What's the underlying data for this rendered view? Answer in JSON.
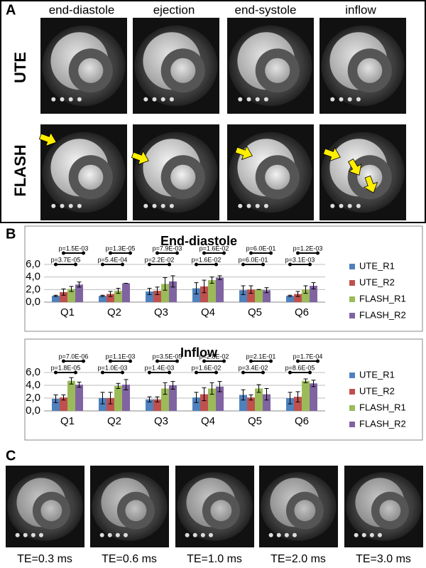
{
  "panels": {
    "a": {
      "label": "A",
      "columns": [
        "end-diastole",
        "ejection",
        "end-systole",
        "inflow"
      ],
      "rows": [
        "UTE",
        "FLASH"
      ]
    },
    "b": {
      "label": "B"
    },
    "c": {
      "label": "C",
      "images": [
        "TE=0.3 ms",
        "TE=0.6 ms",
        "TE=1.0 ms",
        "TE=2.0 ms",
        "TE=3.0 ms"
      ]
    }
  },
  "chart_data": [
    {
      "type": "bar",
      "title": "End-diastole",
      "categories": [
        "Q1",
        "Q2",
        "Q3",
        "Q4",
        "Q5",
        "Q6"
      ],
      "series": [
        {
          "name": "UTE_R1",
          "color": "#4f81bd",
          "values": [
            1.0,
            1.0,
            1.7,
            2.2,
            1.9,
            1.0
          ],
          "errors": [
            0.1,
            0.1,
            0.5,
            0.9,
            0.7,
            0.1
          ]
        },
        {
          "name": "UTE_R2",
          "color": "#c0504d",
          "values": [
            1.6,
            1.3,
            1.8,
            2.5,
            2.0,
            1.3
          ],
          "errors": [
            0.5,
            0.4,
            0.6,
            1.0,
            0.6,
            0.4
          ]
        },
        {
          "name": "FLASH_R1",
          "color": "#9bbb59",
          "values": [
            2.1,
            1.8,
            2.9,
            3.5,
            2.0,
            2.0
          ],
          "errors": [
            0.4,
            0.4,
            1.0,
            0.5,
            0.0,
            0.6
          ]
        },
        {
          "name": "FLASH_R2",
          "color": "#8064a2",
          "values": [
            2.8,
            3.0,
            3.3,
            3.9,
            1.9,
            2.6
          ],
          "errors": [
            0.4,
            0.0,
            0.9,
            0.3,
            0.4,
            0.5
          ]
        }
      ],
      "ylim": [
        0,
        6
      ],
      "yticks": [
        {
          "value": 0,
          "label": "0,0"
        },
        {
          "value": 2,
          "label": "2,0"
        },
        {
          "value": 4,
          "label": "4,0"
        },
        {
          "value": 6,
          "label": "6,0"
        }
      ],
      "grid": true,
      "legend": "right",
      "annotations": {
        "upper": [
          "p=1.5E-03",
          "p=1.3E-05",
          "p=7.9E-03",
          "p=1.6E-02",
          "p=6.0E-01",
          "p=1.2E-03"
        ],
        "lower": [
          "p=3.7E-05",
          "p=5.4E-04",
          "p=2.2E-02",
          "p=1.6E-02",
          "p=6.0E-01",
          "p=3.1E-03"
        ]
      }
    },
    {
      "type": "bar",
      "title": "Inflow",
      "categories": [
        "Q1",
        "Q2",
        "Q3",
        "Q4",
        "Q5",
        "Q6"
      ],
      "series": [
        {
          "name": "UTE_R1",
          "color": "#4f81bd",
          "values": [
            1.9,
            2.0,
            1.8,
            2.1,
            2.5,
            2.0
          ],
          "errors": [
            0.6,
            0.9,
            0.4,
            0.8,
            0.8,
            0.9
          ]
        },
        {
          "name": "UTE_R2",
          "color": "#c0504d",
          "values": [
            2.1,
            2.0,
            1.8,
            2.6,
            2.1,
            2.2
          ],
          "errors": [
            0.4,
            0.9,
            0.4,
            1.0,
            0.4,
            0.8
          ]
        },
        {
          "name": "FLASH_R1",
          "color": "#9bbb59",
          "values": [
            4.7,
            3.9,
            3.5,
            3.5,
            3.5,
            4.7
          ],
          "errors": [
            0.5,
            0.4,
            0.9,
            0.9,
            0.6,
            0.3
          ]
        },
        {
          "name": "FLASH_R2",
          "color": "#8064a2",
          "values": [
            4.1,
            4.1,
            4.0,
            3.8,
            2.6,
            4.3
          ],
          "errors": [
            0.4,
            0.8,
            0.6,
            0.8,
            0.9,
            0.5
          ]
        }
      ],
      "ylim": [
        0,
        6
      ],
      "yticks": [
        {
          "value": 0,
          "label": "0,0"
        },
        {
          "value": 2,
          "label": "2,0"
        },
        {
          "value": 4,
          "label": "4,0"
        },
        {
          "value": 6,
          "label": "6,0"
        }
      ],
      "grid": true,
      "legend": "right",
      "annotations": {
        "upper": [
          "p=7.0E-06",
          "p=1.1E-03",
          "p=3.5E-05",
          "p=2.8E-02",
          "p=2.1E-01",
          "p=1.7E-04"
        ],
        "lower": [
          "p=1.8E-05",
          "p=1.0E-03",
          "p=1.4E-03",
          "p=1.6E-02",
          "p=3.4E-02",
          "p=8.6E-05"
        ]
      }
    }
  ]
}
